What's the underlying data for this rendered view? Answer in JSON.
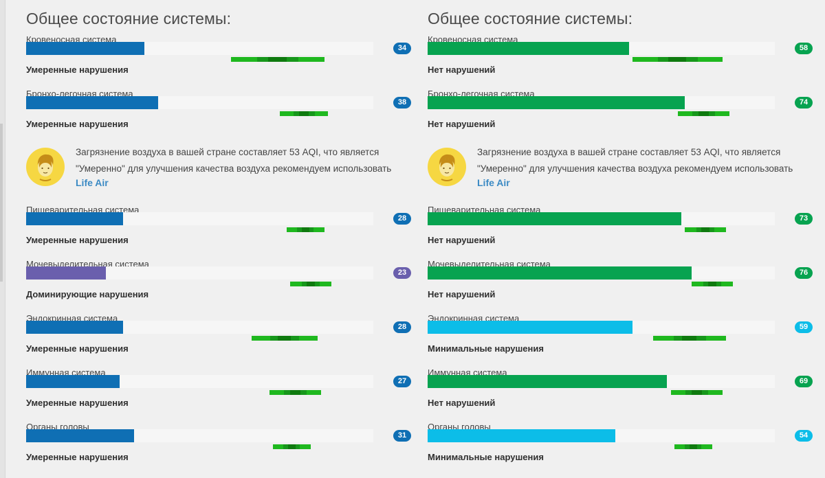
{
  "colors": {
    "blue": "#0f6fb4",
    "purple": "#6a5fad",
    "green": "#07a350",
    "cyan": "#0cbde8",
    "norm_green": "#1fb81f"
  },
  "panels": [
    {
      "title": "Общее состояние системы:",
      "info": {
        "text": "Загрязнение воздуха в вашей стране составляет 53 AQI, что является \"Умеренно\" для улучшения качества воздуха рекомендуем использовать",
        "link": "Life Air",
        "icon": "face-avatar-icon"
      },
      "metrics": [
        {
          "name": "Кровеносная система",
          "value": 34,
          "percent": 34,
          "color": "blue",
          "status": "Умеренные нарушения",
          "norm": [
            0.59,
            0.86
          ]
        },
        {
          "name": "Бронхо-легочная система",
          "value": 38,
          "percent": 38,
          "color": "blue",
          "status": "Умеренные нарушения",
          "norm": [
            0.73,
            0.87
          ]
        },
        {
          "name": "Пищеварительная система",
          "value": 28,
          "percent": 28,
          "color": "blue",
          "status": "Умеренные нарушения",
          "norm": [
            0.75,
            0.86
          ]
        },
        {
          "name": "Мочевыделительная система",
          "value": 23,
          "percent": 23,
          "color": "purple",
          "status": "Доминирующие нарушения",
          "norm": [
            0.76,
            0.88
          ]
        },
        {
          "name": "Эндокринная система",
          "value": 28,
          "percent": 28,
          "color": "blue",
          "status": "Умеренные нарушения",
          "norm": [
            0.65,
            0.84
          ]
        },
        {
          "name": "Иммунная система",
          "value": 27,
          "percent": 27,
          "color": "blue",
          "status": "Умеренные нарушения",
          "norm": [
            0.7,
            0.85
          ]
        },
        {
          "name": "Органы головы",
          "value": 31,
          "percent": 31,
          "color": "blue",
          "status": "Умеренные нарушения",
          "norm": [
            0.71,
            0.82
          ]
        }
      ]
    },
    {
      "title": "Общее состояние системы:",
      "info": {
        "text": "Загрязнение воздуха в вашей стране составляет 53 AQI, что является \"Умеренно\" для улучшения качества воздуха рекомендуем использовать",
        "link": "Life Air",
        "icon": "face-avatar-icon"
      },
      "metrics": [
        {
          "name": "Кровеносная система",
          "value": 58,
          "percent": 58,
          "color": "green",
          "status": "Нет нарушений",
          "norm": [
            0.59,
            0.85
          ]
        },
        {
          "name": "Бронхо-легочная система",
          "value": 74,
          "percent": 74,
          "color": "green",
          "status": "Нет нарушений",
          "norm": [
            0.72,
            0.87
          ]
        },
        {
          "name": "Пищеварительная система",
          "value": 73,
          "percent": 73,
          "color": "green",
          "status": "Нет нарушений",
          "norm": [
            0.74,
            0.86
          ]
        },
        {
          "name": "Мочевыделительная система",
          "value": 76,
          "percent": 76,
          "color": "green",
          "status": "Нет нарушений",
          "norm": [
            0.76,
            0.88
          ]
        },
        {
          "name": "Эндокринная система",
          "value": 59,
          "percent": 59,
          "color": "cyan",
          "status": "Минимальные нарушения",
          "norm": [
            0.65,
            0.86
          ]
        },
        {
          "name": "Иммунная система",
          "value": 69,
          "percent": 69,
          "color": "green",
          "status": "Нет нарушений",
          "norm": [
            0.7,
            0.85
          ]
        },
        {
          "name": "Органы головы",
          "value": 54,
          "percent": 54,
          "color": "cyan",
          "status": "Минимальные нарушения",
          "norm": [
            0.71,
            0.82
          ]
        }
      ]
    }
  ]
}
